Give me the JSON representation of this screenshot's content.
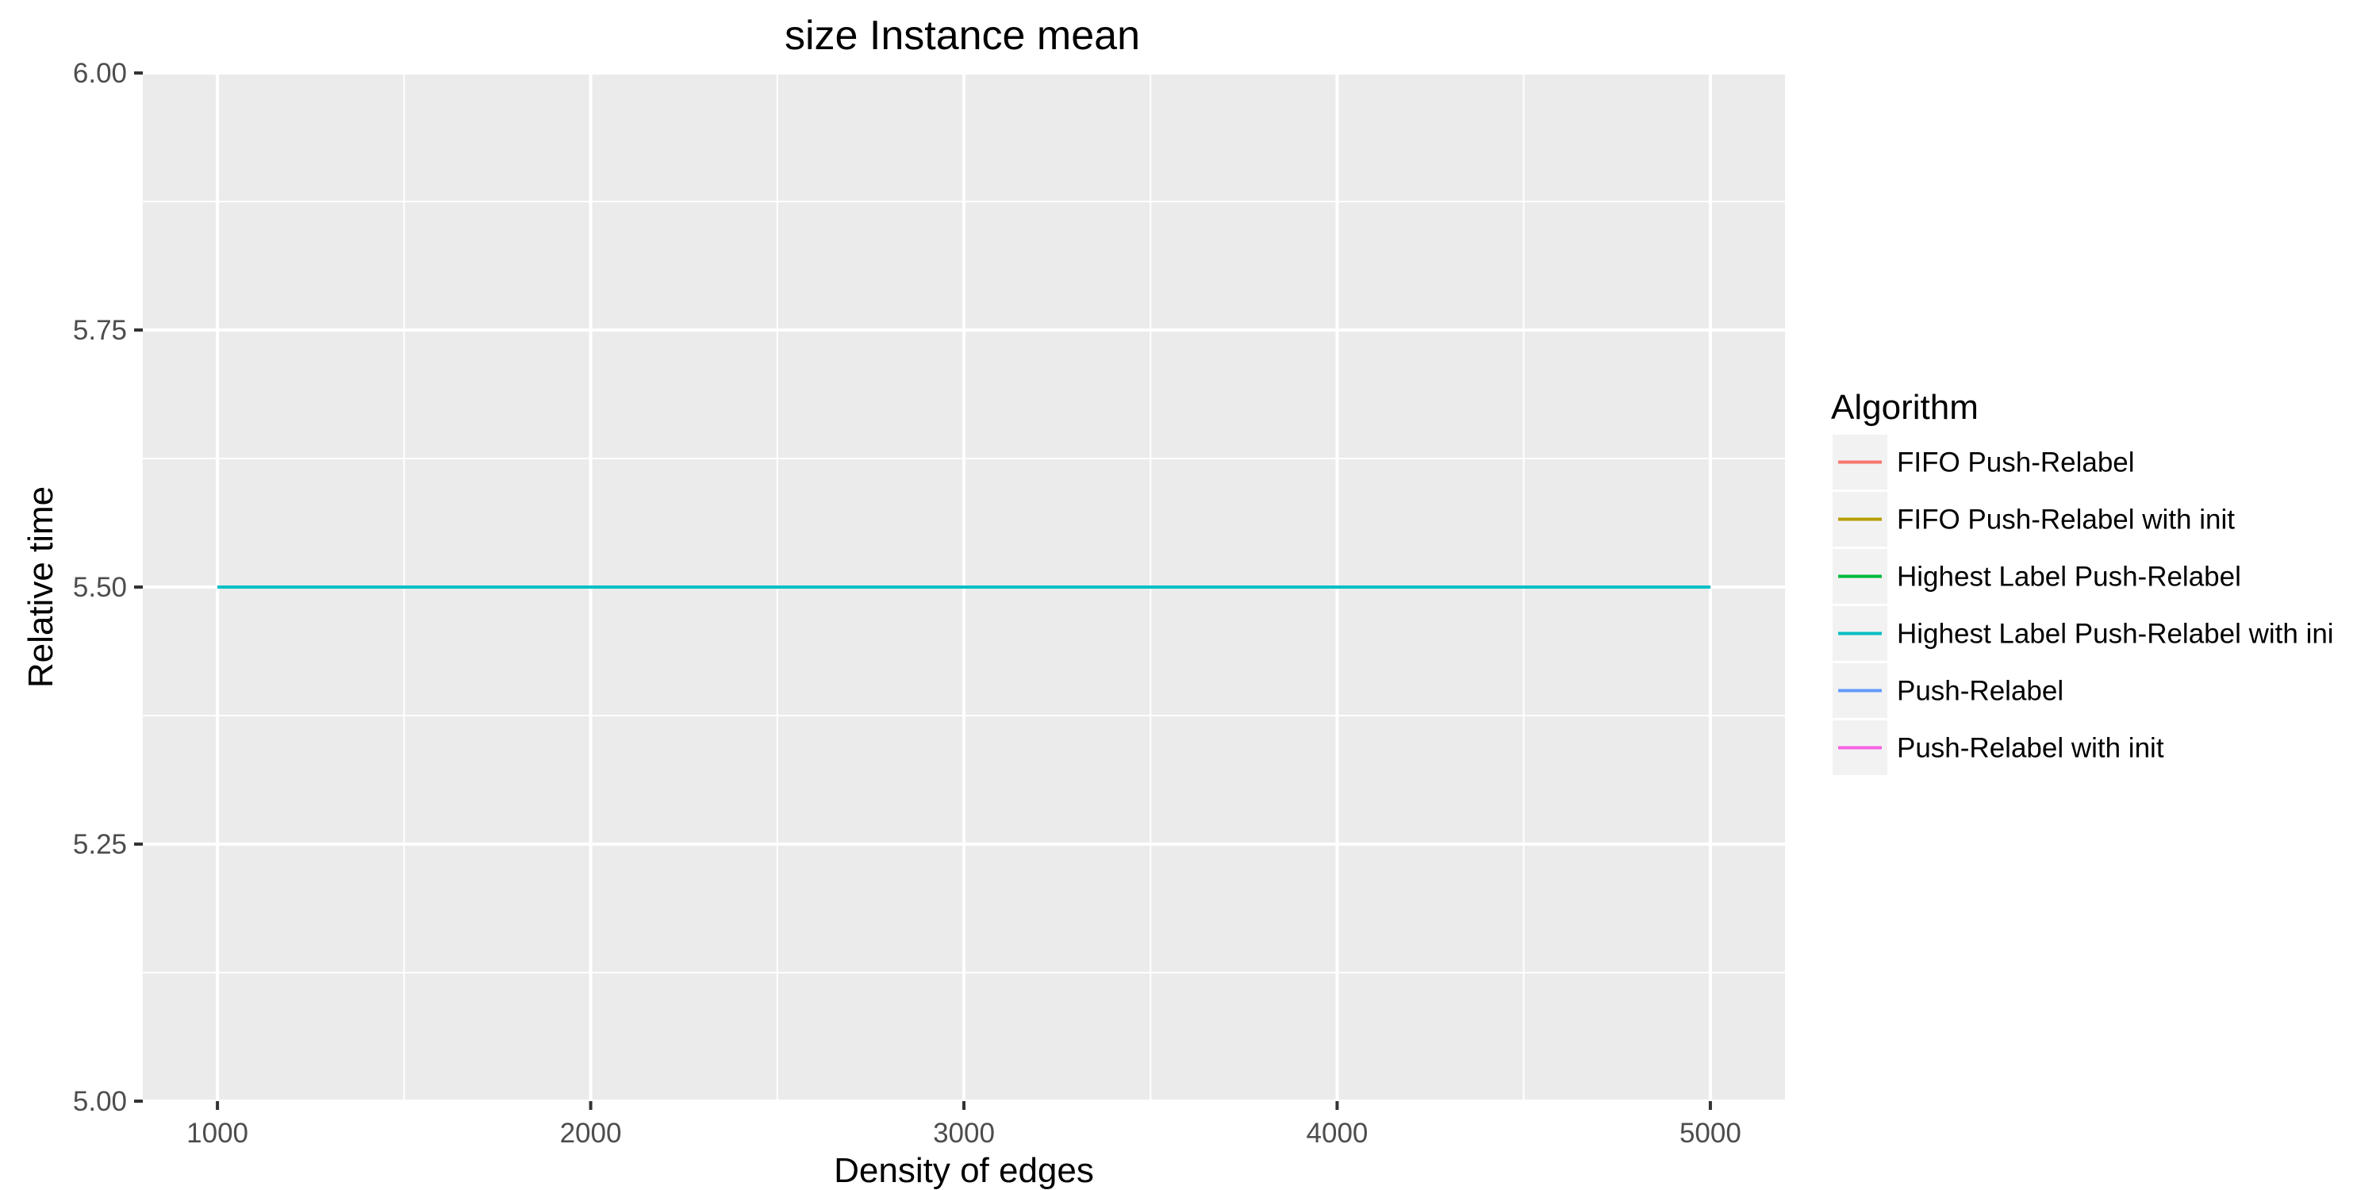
{
  "chart_data": {
    "type": "line",
    "title": "size Instance mean",
    "xlabel": "Density of edges",
    "ylabel": "Relative time",
    "xlim": [
      800,
      5200
    ],
    "ylim": [
      5.0,
      6.0
    ],
    "x_ticks": [
      1000,
      2000,
      3000,
      4000,
      5000
    ],
    "x_tick_labels": [
      "1000",
      "2000",
      "3000",
      "4000",
      "5000"
    ],
    "y_ticks": [
      5.0,
      5.25,
      5.5,
      5.75,
      6.0
    ],
    "y_tick_labels": [
      "5.00",
      "5.25",
      "5.50",
      "5.75",
      "6.00"
    ],
    "grid": true,
    "legend": {
      "title": "Algorithm",
      "placement": "right",
      "entries": [
        {
          "label": "FIFO Push-Relabel",
          "color": "#F8766D"
        },
        {
          "label": "FIFO Push-Relabel with init",
          "color": "#B79F00"
        },
        {
          "label": "Highest Label Push-Relabel",
          "color": "#00BA38"
        },
        {
          "label": "Highest Label Push-Relabel with ini",
          "color": "#00BFC4"
        },
        {
          "label": "Push-Relabel",
          "color": "#619CFF"
        },
        {
          "label": "Push-Relabel with init",
          "color": "#F564E3"
        }
      ]
    },
    "series": [
      {
        "x": [
          1000,
          5000
        ],
        "y": [
          5.5,
          5.5
        ],
        "color": "#F8766D"
      },
      {
        "x": [
          1000,
          5000
        ],
        "y": [
          5.5,
          5.5
        ],
        "color": "#B79F00"
      },
      {
        "x": [
          1000,
          5000
        ],
        "y": [
          5.5,
          5.5
        ],
        "color": "#00BA38"
      },
      {
        "x": [
          1000,
          5000
        ],
        "y": [
          5.5,
          5.5
        ],
        "color": "#619CFF"
      },
      {
        "x": [
          1000,
          5000
        ],
        "y": [
          5.5,
          5.5
        ],
        "color": "#F564E3"
      },
      {
        "x": [
          1000,
          5000
        ],
        "y": [
          5.5,
          5.5
        ],
        "color": "#00BFC4"
      }
    ],
    "colors": {
      "panel_background": "#EBEBEB",
      "grid_line": "#FFFFFF",
      "legend_key_background": "#F2F2F2"
    }
  }
}
